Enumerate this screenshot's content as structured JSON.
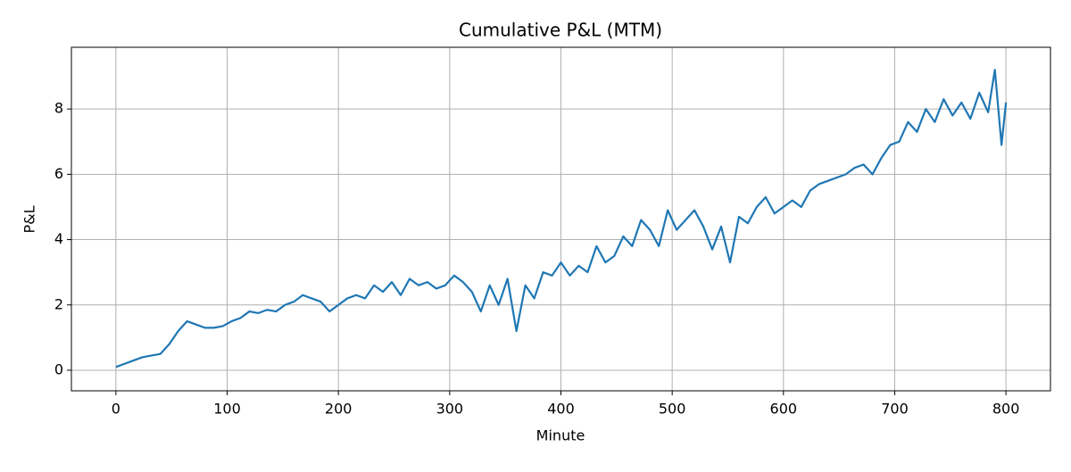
{
  "chart_data": {
    "type": "line",
    "title": "Cumulative P&L (MTM)",
    "xlabel": "Minute",
    "ylabel": "P&L",
    "x": [
      0,
      8,
      16,
      24,
      32,
      40,
      48,
      56,
      64,
      72,
      80,
      88,
      96,
      104,
      112,
      120,
      128,
      136,
      144,
      152,
      160,
      168,
      176,
      184,
      192,
      200,
      208,
      216,
      224,
      232,
      240,
      248,
      256,
      264,
      272,
      280,
      288,
      296,
      304,
      312,
      320,
      328,
      336,
      344,
      352,
      360,
      368,
      376,
      384,
      392,
      400,
      408,
      416,
      424,
      432,
      440,
      448,
      456,
      464,
      472,
      480,
      488,
      496,
      504,
      512,
      520,
      528,
      536,
      544,
      552,
      560,
      568,
      576,
      584,
      592,
      600,
      608,
      616,
      624,
      632,
      640,
      648,
      656,
      664,
      672,
      680,
      688,
      696,
      704,
      712,
      720,
      728,
      736,
      744,
      752,
      760,
      768,
      776,
      784,
      790,
      796,
      800
    ],
    "series": [
      {
        "name": "P&L",
        "color": "#1f77b4",
        "values": [
          0.1,
          0.2,
          0.3,
          0.4,
          0.45,
          0.5,
          0.8,
          1.2,
          1.5,
          1.4,
          1.3,
          1.3,
          1.35,
          1.5,
          1.6,
          1.8,
          1.75,
          1.85,
          1.8,
          2.0,
          2.1,
          2.3,
          2.2,
          2.1,
          1.8,
          2.0,
          2.2,
          2.3,
          2.2,
          2.6,
          2.4,
          2.7,
          2.3,
          2.8,
          2.6,
          2.7,
          2.5,
          2.6,
          2.9,
          2.7,
          2.4,
          1.8,
          2.6,
          2.0,
          2.8,
          1.2,
          2.6,
          2.2,
          3.0,
          2.9,
          3.3,
          2.9,
          3.2,
          3.0,
          3.8,
          3.3,
          3.5,
          4.1,
          3.8,
          4.6,
          4.3,
          3.8,
          4.9,
          4.3,
          4.6,
          4.9,
          4.4,
          3.7,
          4.4,
          3.3,
          4.7,
          4.5,
          5.0,
          5.3,
          4.8,
          5.0,
          5.2,
          5.0,
          5.5,
          5.7,
          5.8,
          5.9,
          6.0,
          6.2,
          6.3,
          6.0,
          6.5,
          6.9,
          7.0,
          7.6,
          7.3,
          8.0,
          7.6,
          8.3,
          7.8,
          8.2,
          7.7,
          8.5,
          7.9,
          9.2,
          6.9,
          8.2
        ]
      }
    ],
    "xlim": [
      -40,
      840
    ],
    "ylim": [
      -0.63,
      9.89
    ],
    "xticks": [
      0,
      100,
      200,
      300,
      400,
      500,
      600,
      700,
      800
    ],
    "yticks": [
      0,
      2,
      4,
      6,
      8
    ],
    "grid": true
  }
}
